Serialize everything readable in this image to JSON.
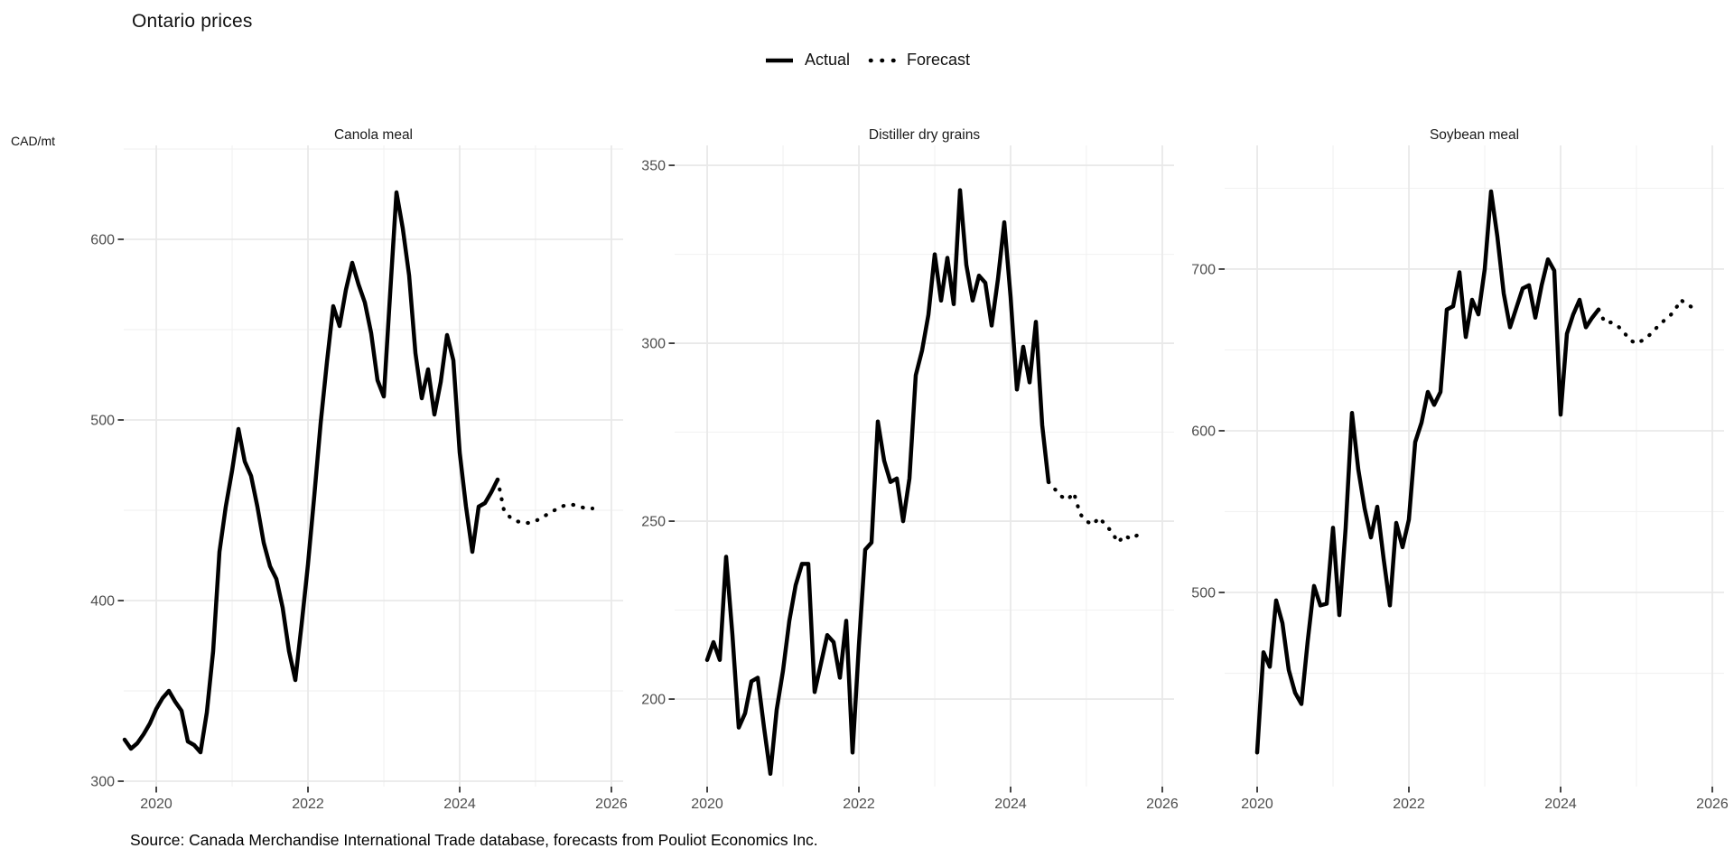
{
  "title": "Ontario prices",
  "y_axis_unit": "CAD/mt",
  "source": "Source: Canada Merchandise International Trade database, forecasts from Pouliot Economics Inc.",
  "legend": {
    "actual_label": "Actual",
    "forecast_label": "Forecast",
    "actual_icon": "solid-line",
    "forecast_icon": "dotted-line"
  },
  "colors": {
    "line": "#000000",
    "grid_major": "#e9e9e9",
    "grid_minor": "#f2f2f2",
    "tick_mark": "#333333",
    "tick_text": "#4d4d4d",
    "panel_title_text": "#1a1a1a",
    "background": "#ffffff"
  },
  "chart_data": [
    {
      "type": "line",
      "title": "Canola meal",
      "xlabel": "",
      "ylabel": "CAD/mt",
      "xlim": [
        2019.571,
        2026.155
      ],
      "ylim": [
        297,
        652
      ],
      "xticks": [
        2020,
        2022,
        2024,
        2026
      ],
      "xticks_minor": [
        2021,
        2023,
        2025
      ],
      "yticks": [
        300,
        400,
        500,
        600
      ],
      "yticks_minor": [
        350,
        450,
        550,
        650
      ],
      "grid": true,
      "series": [
        {
          "name": "Actual",
          "style": "solid",
          "start": {
            "year": 2019,
            "month": 8
          },
          "values": [
            323,
            318,
            321,
            326,
            332,
            340,
            346,
            350,
            344,
            339,
            322,
            320,
            316,
            338,
            372,
            427,
            452,
            472,
            495,
            477,
            469,
            452,
            432,
            419,
            412,
            396,
            372,
            356,
            387,
            420,
            458,
            498,
            532,
            563,
            552,
            572,
            587,
            575,
            565,
            548,
            522,
            513,
            570,
            626,
            606,
            580,
            537,
            512,
            528,
            503,
            521,
            547,
            533,
            482,
            452,
            427,
            452,
            454,
            460,
            467
          ]
        },
        {
          "name": "Forecast",
          "style": "dotted",
          "start": {
            "year": 2024,
            "month": 8
          },
          "values": [
            450,
            446,
            444,
            443,
            443,
            444,
            446,
            448,
            450,
            452,
            453,
            453,
            452,
            451,
            451
          ]
        }
      ]
    },
    {
      "type": "line",
      "title": "Distiller dry grains",
      "xlabel": "",
      "ylabel": "CAD/mt",
      "xlim": [
        2019.571,
        2026.155
      ],
      "ylim": [
        175.4,
        355.6
      ],
      "xticks": [
        2020,
        2022,
        2024,
        2026
      ],
      "xticks_minor": [
        2021,
        2023,
        2025
      ],
      "yticks": [
        200,
        250,
        300,
        350
      ],
      "yticks_minor": [
        225,
        275,
        325
      ],
      "grid": true,
      "series": [
        {
          "name": "Actual",
          "style": "solid",
          "start": {
            "year": 2020,
            "month": 1
          },
          "values": [
            211,
            216,
            211,
            240,
            218,
            192,
            196,
            205,
            206,
            192,
            179,
            197,
            208,
            222,
            232,
            238,
            238,
            202,
            210,
            218,
            216,
            206,
            222,
            185,
            215,
            242,
            244,
            278,
            267,
            261,
            262,
            250,
            262,
            291,
            298,
            308,
            325,
            312,
            324,
            311,
            343,
            322,
            312,
            319,
            317,
            305,
            318,
            334,
            313,
            287,
            299,
            289,
            306,
            277,
            261
          ]
        },
        {
          "name": "Forecast",
          "style": "dotted",
          "start": {
            "year": 2024,
            "month": 8
          },
          "values": [
            259,
            257,
            256,
            258,
            252,
            250,
            249,
            251,
            249,
            247,
            244,
            246,
            245,
            246,
            246
          ]
        }
      ]
    },
    {
      "type": "line",
      "title": "Soybean meal",
      "xlabel": "",
      "ylabel": "CAD/mt",
      "xlim": [
        2019.571,
        2026.155
      ],
      "ylim": [
        379.9,
        776.5
      ],
      "xticks": [
        2020,
        2022,
        2024,
        2026
      ],
      "xticks_minor": [
        2021,
        2023,
        2025
      ],
      "yticks": [
        500,
        600,
        700
      ],
      "yticks_minor": [
        450,
        550,
        650,
        750
      ],
      "grid": true,
      "series": [
        {
          "name": "Actual",
          "style": "solid",
          "start": {
            "year": 2020,
            "month": 1
          },
          "values": [
            401,
            463,
            454,
            495,
            481,
            452,
            438,
            431,
            470,
            504,
            492,
            493,
            540,
            486,
            540,
            611,
            576,
            552,
            534,
            553,
            521,
            492,
            543,
            528,
            545,
            593,
            605,
            624,
            616,
            624,
            675,
            677,
            698,
            658,
            681,
            672,
            700,
            748,
            720,
            685,
            664,
            676,
            688,
            690,
            670,
            690,
            706,
            699,
            610,
            660,
            672,
            681,
            664,
            670,
            675
          ]
        },
        {
          "name": "Forecast",
          "style": "dotted",
          "start": {
            "year": 2024,
            "month": 8
          },
          "values": [
            667,
            667,
            665,
            661,
            656,
            654,
            656,
            659,
            663,
            667,
            670,
            674,
            681,
            678,
            676
          ]
        }
      ]
    }
  ]
}
